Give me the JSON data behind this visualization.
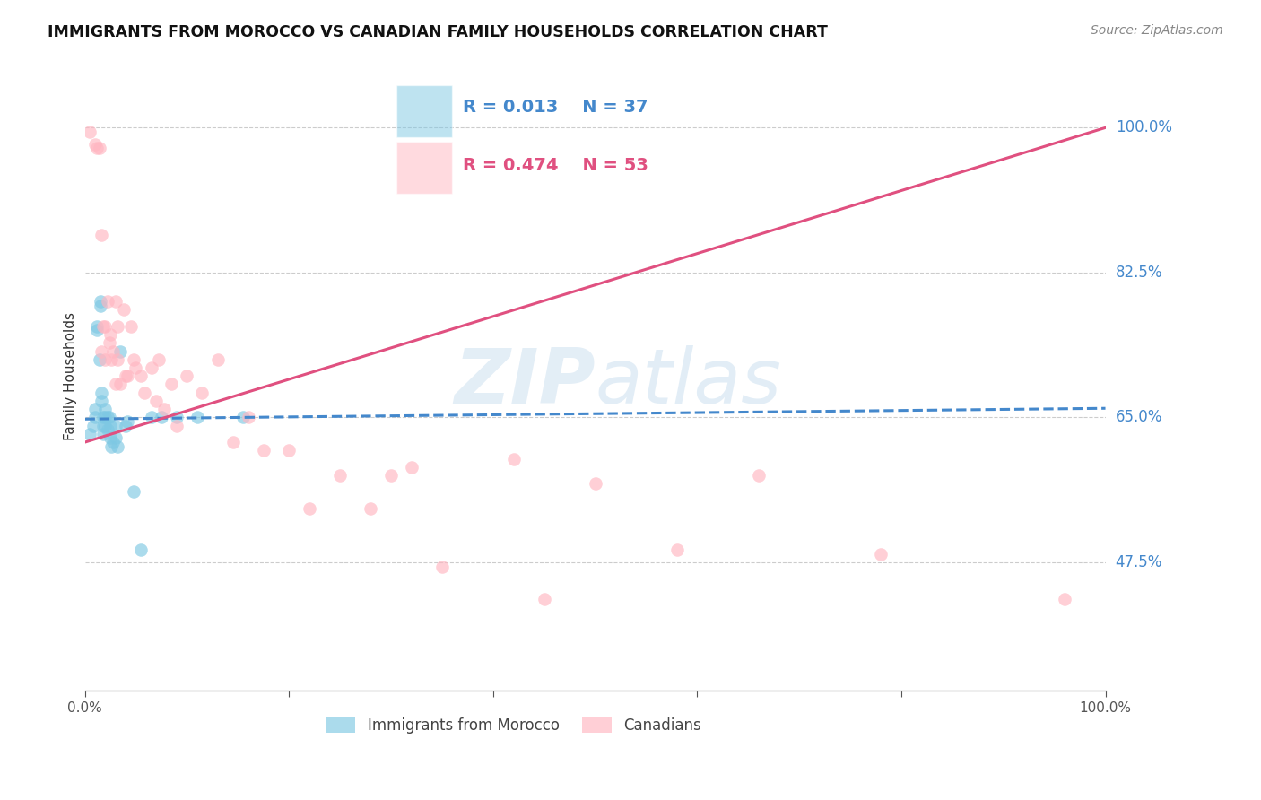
{
  "title": "IMMIGRANTS FROM MOROCCO VS CANADIAN FAMILY HOUSEHOLDS CORRELATION CHART",
  "source": "Source: ZipAtlas.com",
  "ylabel": "Family Households",
  "watermark": "ZIPatlas",
  "ytick_labels": [
    "100.0%",
    "82.5%",
    "65.0%",
    "47.5%"
  ],
  "ytick_values": [
    1.0,
    0.825,
    0.65,
    0.475
  ],
  "xlim": [
    0.0,
    1.0
  ],
  "ylim": [
    0.32,
    1.08
  ],
  "legend_r1": "R = 0.013",
  "legend_n1": "N = 37",
  "legend_r2": "R = 0.474",
  "legend_n2": "N = 53",
  "color_blue": "#7ec8e3",
  "color_pink": "#ffb6c1",
  "trendline_blue": "#4488cc",
  "trendline_pink": "#e05080",
  "blue_scatter_x": [
    0.005,
    0.008,
    0.01,
    0.01,
    0.012,
    0.012,
    0.014,
    0.015,
    0.015,
    0.016,
    0.016,
    0.018,
    0.018,
    0.018,
    0.02,
    0.02,
    0.02,
    0.022,
    0.022,
    0.024,
    0.025,
    0.025,
    0.026,
    0.028,
    0.03,
    0.03,
    0.032,
    0.035,
    0.04,
    0.042,
    0.048,
    0.055,
    0.065,
    0.075,
    0.09,
    0.11,
    0.155
  ],
  "blue_scatter_y": [
    0.63,
    0.64,
    0.66,
    0.65,
    0.76,
    0.755,
    0.72,
    0.79,
    0.785,
    0.68,
    0.67,
    0.65,
    0.64,
    0.63,
    0.66,
    0.65,
    0.64,
    0.65,
    0.635,
    0.65,
    0.64,
    0.625,
    0.615,
    0.62,
    0.64,
    0.625,
    0.615,
    0.73,
    0.64,
    0.645,
    0.56,
    0.49,
    0.65,
    0.65,
    0.65,
    0.65,
    0.65
  ],
  "pink_scatter_x": [
    0.005,
    0.01,
    0.012,
    0.014,
    0.016,
    0.016,
    0.018,
    0.02,
    0.02,
    0.022,
    0.024,
    0.025,
    0.026,
    0.028,
    0.03,
    0.03,
    0.032,
    0.032,
    0.035,
    0.038,
    0.04,
    0.042,
    0.045,
    0.048,
    0.05,
    0.055,
    0.058,
    0.065,
    0.07,
    0.072,
    0.078,
    0.085,
    0.09,
    0.1,
    0.115,
    0.13,
    0.145,
    0.16,
    0.175,
    0.2,
    0.22,
    0.25,
    0.28,
    0.3,
    0.32,
    0.35,
    0.42,
    0.45,
    0.5,
    0.58,
    0.66,
    0.78,
    0.96
  ],
  "pink_scatter_y": [
    0.995,
    0.98,
    0.975,
    0.975,
    0.87,
    0.73,
    0.76,
    0.72,
    0.76,
    0.79,
    0.74,
    0.75,
    0.72,
    0.73,
    0.79,
    0.69,
    0.76,
    0.72,
    0.69,
    0.78,
    0.7,
    0.7,
    0.76,
    0.72,
    0.71,
    0.7,
    0.68,
    0.71,
    0.67,
    0.72,
    0.66,
    0.69,
    0.64,
    0.7,
    0.68,
    0.72,
    0.62,
    0.65,
    0.61,
    0.61,
    0.54,
    0.58,
    0.54,
    0.58,
    0.59,
    0.47,
    0.6,
    0.43,
    0.57,
    0.49,
    0.58,
    0.485,
    0.43
  ],
  "blue_trend_x": [
    0.0,
    1.0
  ],
  "blue_trend_y": [
    0.648,
    0.661
  ],
  "pink_trend_x": [
    0.0,
    1.0
  ],
  "pink_trend_y": [
    0.62,
    1.0
  ]
}
